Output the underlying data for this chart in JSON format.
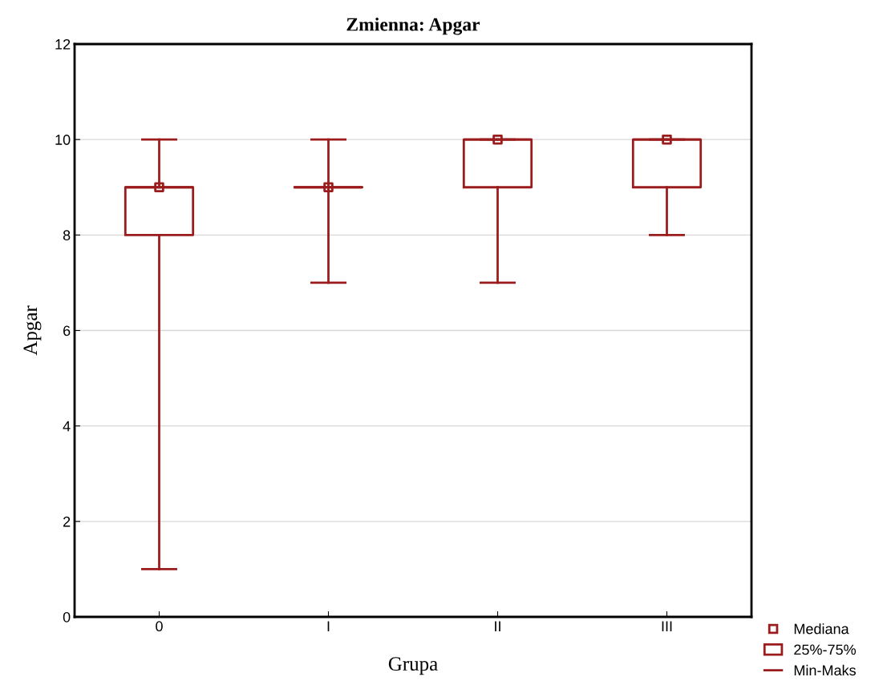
{
  "chart_data": {
    "type": "box",
    "title": "Zmienna: Apgar",
    "xlabel": "Grupa",
    "ylabel": "Apgar",
    "categories": [
      "0",
      "I",
      "II",
      "III"
    ],
    "boxes": [
      {
        "low": 1,
        "q1": 8,
        "median": 9,
        "q3": 9,
        "high": 10
      },
      {
        "low": 7,
        "q1": 9,
        "median": 9,
        "q3": 9,
        "high": 10
      },
      {
        "low": 7,
        "q1": 9,
        "median": 10,
        "q3": 10,
        "high": 10
      },
      {
        "low": 8,
        "q1": 9,
        "median": 10,
        "q3": 10,
        "high": 10
      }
    ],
    "series": [
      {
        "type": "scatter",
        "x": [
          "0",
          "I",
          "II",
          "III"
        ],
        "values": [
          9,
          9,
          10,
          10
        ],
        "color": "#9b1c1c"
      }
    ],
    "color": "#9b1c1c",
    "ylim": [
      0,
      12
    ],
    "yticks": [
      0,
      2,
      4,
      6,
      8,
      10,
      12
    ],
    "grid": "y",
    "marker": "square",
    "annotations": [
      "Mediana",
      "25%-75%",
      "Min-Maks"
    ]
  }
}
